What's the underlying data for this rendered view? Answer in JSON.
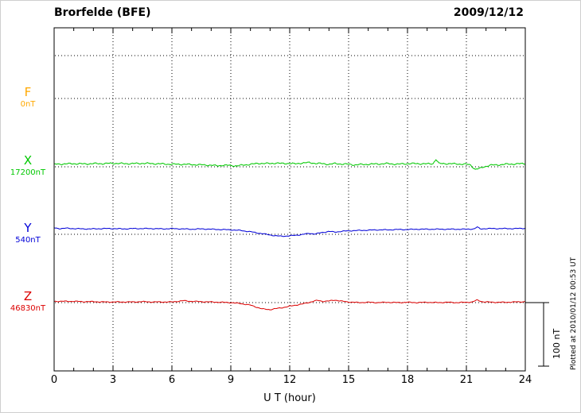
{
  "header": {
    "title": "Brorfelde (BFE)",
    "date": "2009/12/12"
  },
  "axis": {
    "xlabel": "U T (hour)"
  },
  "annotations": {
    "scale_bar_label": "100 nT",
    "plotted_at": "Plotted at 2010/01/12 00:53 UT"
  },
  "chart_data": {
    "type": "line",
    "title": "Brorfelde (BFE)",
    "date": "2009/12/12",
    "xlabel": "U T (hour)",
    "x_range": [
      0,
      24
    ],
    "x_ticks": [
      0,
      3,
      6,
      9,
      12,
      15,
      18,
      21,
      24
    ],
    "scale_bar_nT": 100,
    "grid": "dotted",
    "points_format": "[UT_hour, offset_nT_from_baseline]",
    "series": [
      {
        "name": "F",
        "baseline_value_label": "0nT",
        "baseline_nT": 0,
        "color": "#FFA800",
        "noise_nT": 0,
        "points": []
      },
      {
        "name": "X",
        "baseline_value_label": "17200nT",
        "baseline_nT": 17200,
        "color": "#00C800",
        "noise_nT": 1.5,
        "points": [
          [
            0,
            4
          ],
          [
            0.5,
            4.5
          ],
          [
            1,
            5
          ],
          [
            1.5,
            4.5
          ],
          [
            2,
            5
          ],
          [
            2.5,
            5
          ],
          [
            3,
            5.5
          ],
          [
            3.5,
            5
          ],
          [
            4,
            5
          ],
          [
            4.5,
            5.5
          ],
          [
            5,
            5
          ],
          [
            5.5,
            4.5
          ],
          [
            6,
            4
          ],
          [
            6.5,
            4
          ],
          [
            7,
            3.5
          ],
          [
            7.5,
            3
          ],
          [
            8,
            2.5
          ],
          [
            8.3,
            1.5
          ],
          [
            8.6,
            2.5
          ],
          [
            9,
            2
          ],
          [
            9.3,
            1.5
          ],
          [
            9.6,
            2.5
          ],
          [
            10,
            4
          ],
          [
            10.5,
            5.5
          ],
          [
            11,
            5
          ],
          [
            11.3,
            6
          ],
          [
            11.6,
            5
          ],
          [
            12,
            5.5
          ],
          [
            12.3,
            4.5
          ],
          [
            12.6,
            6
          ],
          [
            13,
            6.5
          ],
          [
            13.3,
            5.5
          ],
          [
            13.6,
            5
          ],
          [
            14,
            4
          ],
          [
            14.3,
            5
          ],
          [
            14.6,
            4.5
          ],
          [
            15,
            4
          ],
          [
            15.3,
            3
          ],
          [
            15.6,
            3.5
          ],
          [
            16,
            4
          ],
          [
            16.5,
            4.5
          ],
          [
            17,
            5
          ],
          [
            17.5,
            4
          ],
          [
            18,
            5
          ],
          [
            18.5,
            5
          ],
          [
            19,
            4.5
          ],
          [
            19.3,
            5
          ],
          [
            19.45,
            12
          ],
          [
            19.6,
            5
          ],
          [
            20,
            5
          ],
          [
            20.5,
            4.5
          ],
          [
            21,
            4
          ],
          [
            21.2,
            3
          ],
          [
            21.45,
            -4
          ],
          [
            21.7,
            -2.5
          ],
          [
            21.9,
            0
          ],
          [
            22.2,
            2.5
          ],
          [
            22.6,
            3
          ],
          [
            23,
            4
          ],
          [
            23.5,
            4.5
          ],
          [
            24,
            5
          ]
        ]
      },
      {
        "name": "Y",
        "baseline_value_label": "540nT",
        "baseline_nT": 540,
        "color": "#0000D8",
        "noise_nT": 0.9,
        "points": [
          [
            0,
            10
          ],
          [
            0.3,
            9
          ],
          [
            0.6,
            9.5
          ],
          [
            1,
            9
          ],
          [
            1.5,
            8.5
          ],
          [
            2,
            8.5
          ],
          [
            2.5,
            9
          ],
          [
            3,
            9
          ],
          [
            3.5,
            8.5
          ],
          [
            4,
            9
          ],
          [
            4.5,
            9
          ],
          [
            5,
            9
          ],
          [
            5.5,
            8.5
          ],
          [
            6,
            9
          ],
          [
            6.5,
            8.5
          ],
          [
            7,
            8
          ],
          [
            7.5,
            8.5
          ],
          [
            8,
            8
          ],
          [
            8.5,
            7.5
          ],
          [
            9,
            7
          ],
          [
            9.5,
            6
          ],
          [
            10,
            4
          ],
          [
            10.3,
            2.5
          ],
          [
            10.6,
            1
          ],
          [
            11,
            -1
          ],
          [
            11.3,
            -2.5
          ],
          [
            11.6,
            -3
          ],
          [
            12,
            -2.5
          ],
          [
            12.3,
            -1.5
          ],
          [
            12.6,
            -0.5
          ],
          [
            13,
            1.5
          ],
          [
            13.3,
            0.5
          ],
          [
            13.6,
            2.5
          ],
          [
            14,
            4.5
          ],
          [
            14.3,
            3.5
          ],
          [
            14.6,
            4.5
          ],
          [
            15,
            5.5
          ],
          [
            15.5,
            6
          ],
          [
            16,
            6.5
          ],
          [
            16.5,
            7
          ],
          [
            17,
            7
          ],
          [
            17.5,
            7.5
          ],
          [
            18,
            7.5
          ],
          [
            18.5,
            8
          ],
          [
            19,
            8
          ],
          [
            19.5,
            8
          ],
          [
            20,
            8
          ],
          [
            20.5,
            8
          ],
          [
            21,
            8
          ],
          [
            21.4,
            8.5
          ],
          [
            21.55,
            11.5
          ],
          [
            21.7,
            8.5
          ],
          [
            22,
            9
          ],
          [
            22.5,
            9
          ],
          [
            23,
            9
          ],
          [
            23.5,
            9
          ],
          [
            24,
            9.5
          ]
        ]
      },
      {
        "name": "Z",
        "baseline_value_label": "46830nT",
        "baseline_nT": 46830,
        "color": "#DC0000",
        "noise_nT": 0.9,
        "points": [
          [
            0,
            2
          ],
          [
            0.5,
            2
          ],
          [
            1,
            2
          ],
          [
            1.5,
            1.5
          ],
          [
            2,
            1.5
          ],
          [
            2.5,
            1
          ],
          [
            3,
            1
          ],
          [
            3.5,
            1
          ],
          [
            4,
            1
          ],
          [
            4.5,
            1.5
          ],
          [
            5,
            1
          ],
          [
            5.5,
            1
          ],
          [
            6,
            1
          ],
          [
            6.3,
            2
          ],
          [
            6.6,
            3
          ],
          [
            7,
            2
          ],
          [
            7.5,
            1.5
          ],
          [
            8,
            1
          ],
          [
            8.5,
            0.5
          ],
          [
            9,
            0
          ],
          [
            9.5,
            -1.5
          ],
          [
            10,
            -4
          ],
          [
            10.3,
            -7
          ],
          [
            10.6,
            -10
          ],
          [
            11,
            -11
          ],
          [
            11.4,
            -9
          ],
          [
            11.8,
            -7
          ],
          [
            12.2,
            -4.5
          ],
          [
            12.6,
            -2.5
          ],
          [
            13,
            0.5
          ],
          [
            13.4,
            3.5
          ],
          [
            13.7,
            2
          ],
          [
            14,
            2.5
          ],
          [
            14.3,
            4
          ],
          [
            14.7,
            2
          ],
          [
            15,
            1
          ],
          [
            15.5,
            0
          ],
          [
            16,
            0.5
          ],
          [
            16.5,
            0
          ],
          [
            17,
            0.5
          ],
          [
            17.5,
            0
          ],
          [
            18,
            0.5
          ],
          [
            18.5,
            0
          ],
          [
            19,
            0.5
          ],
          [
            19.5,
            0
          ],
          [
            20,
            0.5
          ],
          [
            20.5,
            0
          ],
          [
            21,
            0.5
          ],
          [
            21.3,
            1
          ],
          [
            21.55,
            4
          ],
          [
            21.8,
            1.5
          ],
          [
            22,
            1
          ],
          [
            22.5,
            0.5
          ],
          [
            23,
            0.5
          ],
          [
            23.5,
            1
          ],
          [
            24,
            1.5
          ]
        ]
      }
    ]
  }
}
